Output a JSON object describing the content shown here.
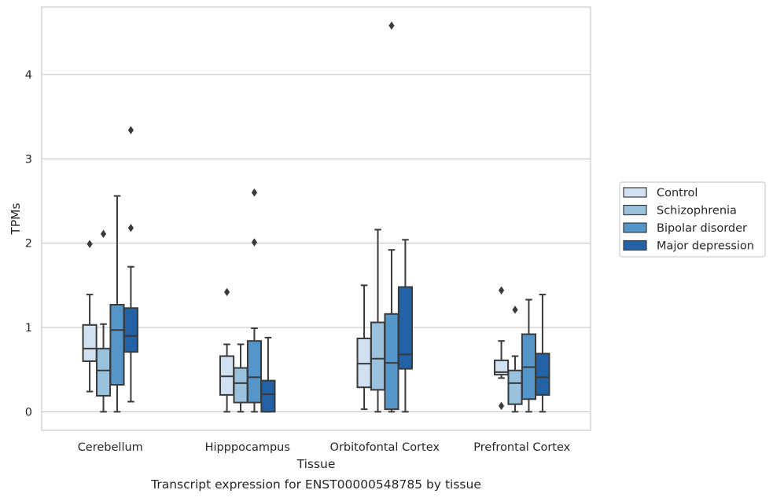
{
  "chart_data": {
    "type": "box",
    "title": "",
    "xlabel": "Tissue",
    "ylabel": "TPMs",
    "caption": "Transcript expression for ENST00000548785 by tissue",
    "ylim": [
      -0.22,
      4.8
    ],
    "yticks": [
      0,
      1,
      2,
      3,
      4
    ],
    "ytick_labels": [
      "0",
      "1",
      "2",
      "3",
      "4"
    ],
    "grid": "horizontal",
    "legend_position": "right-center",
    "categories": [
      "Cerebellum",
      "Hipppocampus",
      "Orbitofontal Cortex",
      "Prefrontal Cortex"
    ],
    "series": [
      {
        "name": "Control",
        "color": "#d1e1f2",
        "boxes": [
          {
            "whisker_low": 0.24,
            "q1": 0.6,
            "median": 0.75,
            "q3": 1.03,
            "whisker_high": 1.39,
            "outliers": [
              1.99
            ]
          },
          {
            "whisker_low": 0.0,
            "q1": 0.2,
            "median": 0.42,
            "q3": 0.66,
            "whisker_high": 0.8,
            "outliers": [
              1.42
            ]
          },
          {
            "whisker_low": 0.03,
            "q1": 0.29,
            "median": 0.57,
            "q3": 0.87,
            "whisker_high": 1.5,
            "outliers": []
          },
          {
            "whisker_low": 0.4,
            "q1": 0.44,
            "median": 0.47,
            "q3": 0.61,
            "whisker_high": 0.84,
            "outliers": [
              1.44,
              0.07
            ]
          }
        ]
      },
      {
        "name": "Schizophrenia",
        "color": "#9ac2de",
        "boxes": [
          {
            "whisker_low": 0.0,
            "q1": 0.19,
            "median": 0.49,
            "q3": 0.75,
            "whisker_high": 1.04,
            "outliers": [
              2.11
            ]
          },
          {
            "whisker_low": 0.0,
            "q1": 0.11,
            "median": 0.34,
            "q3": 0.52,
            "whisker_high": 0.8,
            "outliers": []
          },
          {
            "whisker_low": 0.0,
            "q1": 0.26,
            "median": 0.63,
            "q3": 1.06,
            "whisker_high": 2.16,
            "outliers": []
          },
          {
            "whisker_low": 0.0,
            "q1": 0.09,
            "median": 0.34,
            "q3": 0.49,
            "whisker_high": 0.66,
            "outliers": [
              1.21
            ]
          }
        ]
      },
      {
        "name": "Bipolar disorder",
        "color": "#5496c9",
        "boxes": [
          {
            "whisker_low": 0.0,
            "q1": 0.32,
            "median": 0.97,
            "q3": 1.27,
            "whisker_high": 2.56,
            "outliers": []
          },
          {
            "whisker_low": 0.0,
            "q1": 0.11,
            "median": 0.41,
            "q3": 0.84,
            "whisker_high": 0.99,
            "outliers": [
              2.01,
              2.6
            ]
          },
          {
            "whisker_low": 0.0,
            "q1": 0.03,
            "median": 0.58,
            "q3": 1.16,
            "whisker_high": 1.92,
            "outliers": [
              4.58
            ]
          },
          {
            "whisker_low": 0.0,
            "q1": 0.15,
            "median": 0.53,
            "q3": 0.92,
            "whisker_high": 1.33,
            "outliers": []
          }
        ]
      },
      {
        "name": "Major depression",
        "color": "#2363a5",
        "boxes": [
          {
            "whisker_low": 0.12,
            "q1": 0.71,
            "median": 0.9,
            "q3": 1.23,
            "whisker_high": 1.72,
            "outliers": [
              2.18,
              3.34
            ]
          },
          {
            "whisker_low": 0.0,
            "q1": 0.0,
            "median": 0.21,
            "q3": 0.37,
            "whisker_high": 0.88,
            "outliers": []
          },
          {
            "whisker_low": 0.0,
            "q1": 0.51,
            "median": 0.68,
            "q3": 1.48,
            "whisker_high": 2.04,
            "outliers": []
          },
          {
            "whisker_low": 0.0,
            "q1": 0.2,
            "median": 0.41,
            "q3": 0.69,
            "whisker_high": 1.39,
            "outliers": []
          }
        ]
      }
    ]
  }
}
